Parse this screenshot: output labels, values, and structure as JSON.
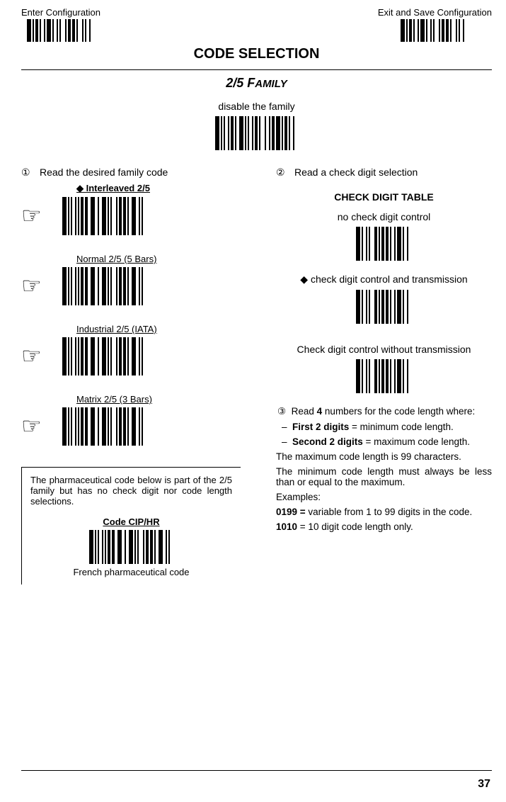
{
  "header": {
    "enter_label": "Enter Configuration",
    "exit_label": "Exit and Save Configuration"
  },
  "section_title": "CODE SELECTION",
  "family_heading": "2/5 Family",
  "family_heading_prefix": "2/5 F",
  "family_heading_suffix": "AMILY",
  "disable_label": "disable the family",
  "left": {
    "step1_num": "①",
    "step1_text": "Read the desired family code",
    "families": [
      {
        "label": "Interleaved 2/5",
        "bold": true,
        "diamond": true
      },
      {
        "label": "Normal 2/5 (5 Bars)",
        "bold": false,
        "diamond": false
      },
      {
        "label": "Industrial 2/5 (IATA)",
        "bold": false,
        "diamond": false
      },
      {
        "label": "Matrix 2/5 (3 Bars)",
        "bold": false,
        "diamond": false
      }
    ],
    "pharma_intro": "The pharmaceutical code below is part of the 2/5 family but has no check digit nor code length selections.",
    "pharma_code_label": "Code CIP/HR",
    "pharma_caption": "French pharmaceutical code"
  },
  "right": {
    "step2_num": "②",
    "step2_text": "Read a check digit selection",
    "check_table_title": "CHECK DIGIT TABLE",
    "checks": [
      {
        "label": "no check digit control",
        "diamond": false
      },
      {
        "label": "check digit control and transmission",
        "diamond": true
      },
      {
        "label": "Check digit control without transmission",
        "diamond": false
      }
    ],
    "step3_num": "③",
    "step3_text_a": "Read ",
    "step3_text_b": "4",
    "step3_text_c": " numbers for the code length where:",
    "rule1_label": "First 2 digits",
    "rule1_rest": " = minimum code length.",
    "rule2_label": "Second 2 digits",
    "rule2_rest": " = maximum code length.",
    "max_line": "The maximum code length is 99 characters.",
    "min_line": "The minimum code length must always be less than or equal to the maximum.",
    "examples_label": "Examples:",
    "ex1_code": "0199 =",
    "ex1_rest": "   variable from 1 to 99 digits in the code.",
    "ex2_code": "1010",
    "ex2_rest": " = 10 digit code length only."
  },
  "page_number": "37",
  "barcode_patterns": {
    "short": [
      3,
      1,
      1,
      1,
      2,
      1,
      1,
      2,
      1,
      1,
      3,
      1,
      1,
      2,
      1,
      1,
      1,
      3,
      1,
      1,
      2,
      1,
      2,
      1,
      1,
      3,
      1,
      1,
      1,
      2,
      1,
      3
    ],
    "disable": [
      3,
      1,
      1,
      1,
      1,
      2,
      1,
      1,
      2,
      1,
      1,
      2,
      3,
      1,
      1,
      1,
      1,
      2,
      1,
      1,
      2,
      1,
      1,
      3,
      1,
      2,
      1,
      1,
      2,
      1,
      3,
      1,
      1,
      1,
      2,
      1,
      1,
      2,
      1,
      3
    ],
    "family": [
      3,
      1,
      1,
      1,
      1,
      2,
      1,
      1,
      1,
      1,
      2,
      1,
      2,
      2,
      3,
      2,
      1,
      2,
      3,
      1,
      1,
      1,
      1,
      3,
      1,
      1,
      2,
      1,
      2,
      1,
      1,
      2,
      3,
      2,
      1,
      1,
      1,
      3
    ],
    "check": [
      3,
      1,
      1,
      2,
      1,
      1,
      1,
      3,
      2,
      1,
      1,
      1,
      2,
      1,
      2,
      1,
      1,
      2,
      1,
      1,
      3,
      1,
      1,
      2,
      1,
      3
    ]
  },
  "colors": {
    "text": "#000000",
    "background": "#ffffff"
  }
}
